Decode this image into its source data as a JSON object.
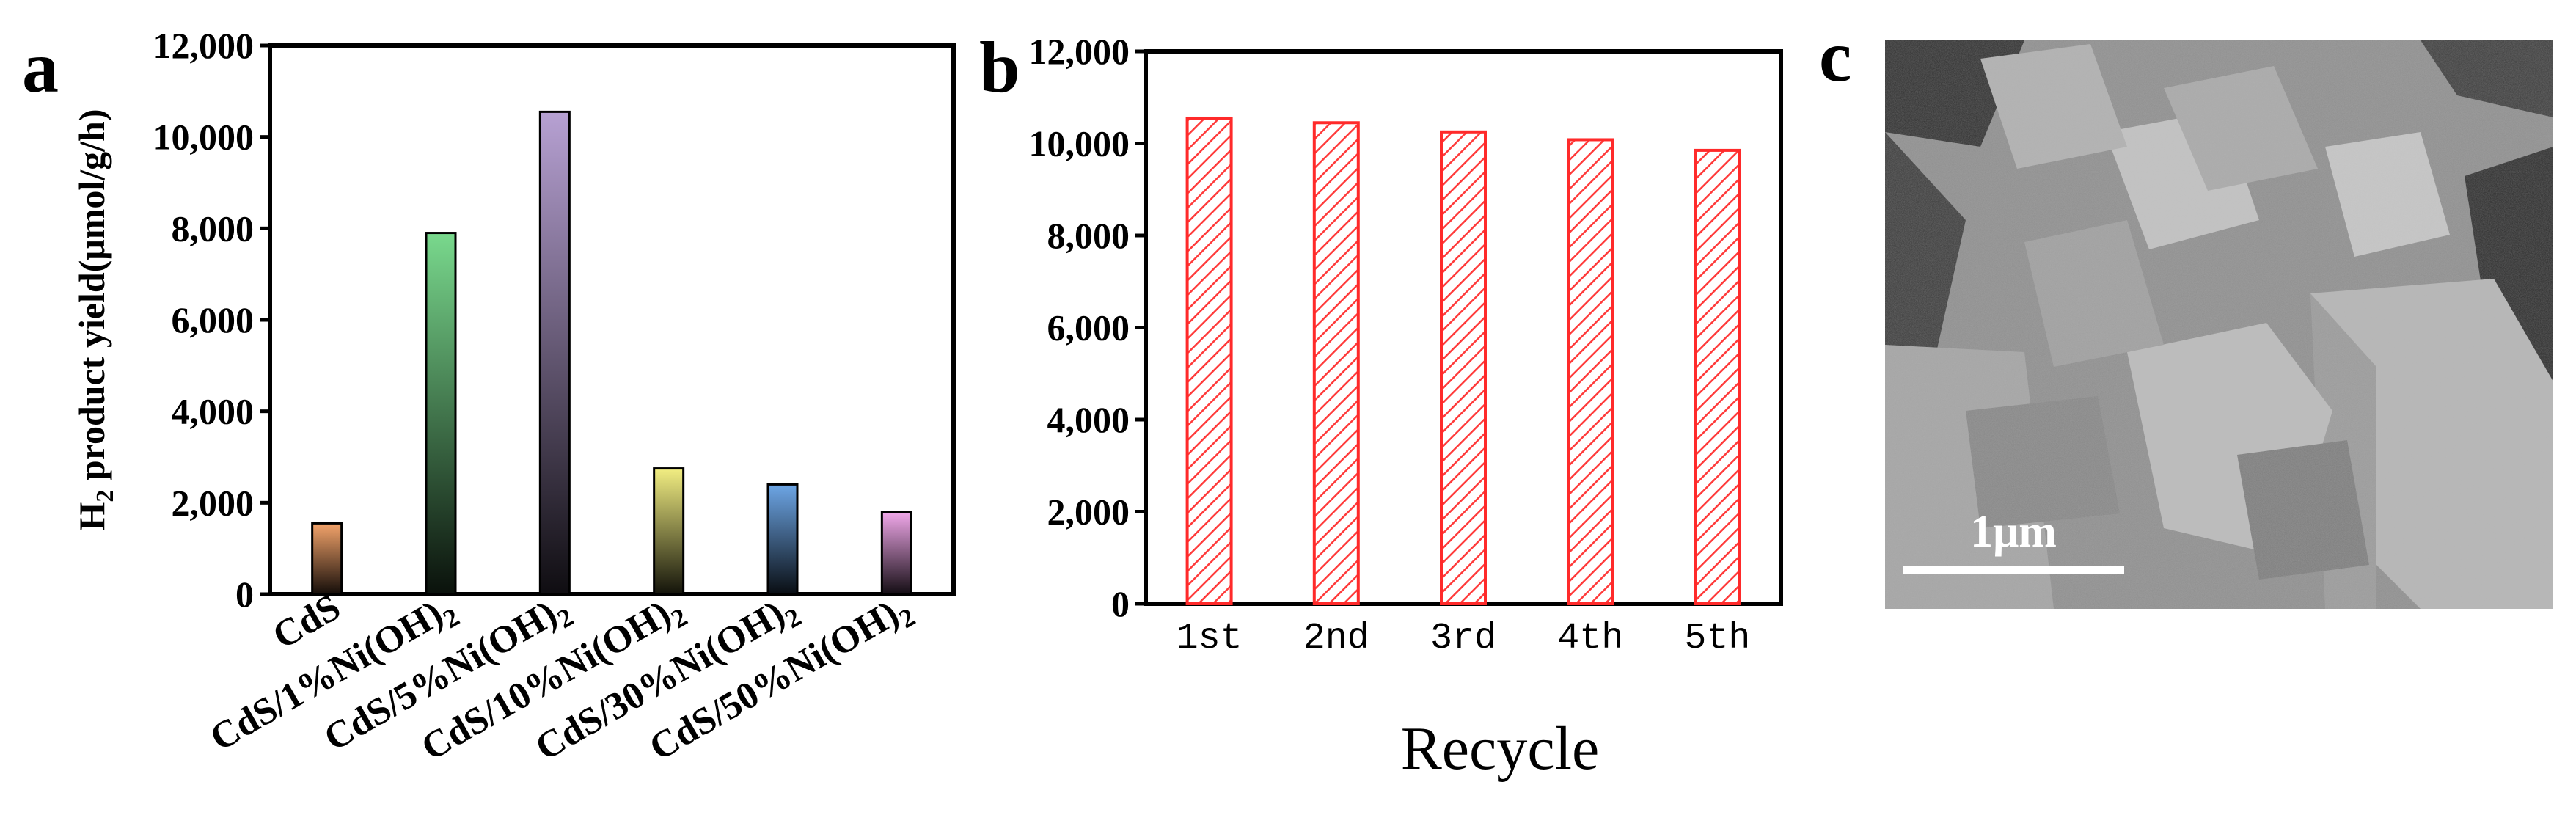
{
  "panels": {
    "a": {
      "letter": "a"
    },
    "b": {
      "letter": "b"
    },
    "c": {
      "letter": "c",
      "scale_bar_label": "1μm"
    }
  },
  "chart_data": [
    {
      "panel": "a",
      "type": "bar",
      "title": "",
      "xlabel": "",
      "ylabel": "H2 product yield(μmol/g/h)",
      "ylabel_main": "H",
      "ylabel_sub": "2",
      "ylabel_rest": " product yield(μmol/g/h)",
      "ylim": [
        0,
        12000
      ],
      "yticks": [
        0,
        2000,
        4000,
        6000,
        8000,
        10000,
        12000
      ],
      "ytick_labels": [
        "0",
        "2,000",
        "4,000",
        "6,000",
        "8,000",
        "10,000",
        "12,000"
      ],
      "grid": false,
      "legend": "none",
      "categories": [
        "CdS",
        "CdS/1%Ni(OH)2",
        "CdS/5%Ni(OH)2",
        "CdS/10%Ni(OH)2",
        "CdS/30%Ni(OH)2",
        "CdS/50%Ni(OH)2"
      ],
      "category_labels": [
        {
          "main": "CdS",
          "sub": ""
        },
        {
          "main": "CdS/1%Ni(OH)",
          "sub": "2"
        },
        {
          "main": "CdS/5%Ni(OH)",
          "sub": "2"
        },
        {
          "main": "CdS/10%Ni(OH)",
          "sub": "2"
        },
        {
          "main": "CdS/30%Ni(OH)",
          "sub": "2"
        },
        {
          "main": "CdS/50%Ni(OH)",
          "sub": "2"
        }
      ],
      "values": [
        1550,
        7900,
        10550,
        2750,
        2400,
        1800
      ],
      "colors": [
        "#f4a46b",
        "#79d98d",
        "#b7a1d3",
        "#f2ee82",
        "#6da6e6",
        "#f1a8ea"
      ]
    },
    {
      "panel": "b",
      "type": "bar",
      "title": "",
      "xlabel": "Recycle",
      "ylabel": "",
      "ylim": [
        0,
        12000
      ],
      "yticks": [
        0,
        2000,
        4000,
        6000,
        8000,
        10000,
        12000
      ],
      "ytick_labels": [
        "0",
        "2,000",
        "4,000",
        "6,000",
        "8,000",
        "10,000",
        "12,000"
      ],
      "grid": false,
      "legend": "none",
      "categories": [
        "1st",
        "2nd",
        "3rd",
        "4th",
        "5th"
      ],
      "values": [
        10550,
        10450,
        10250,
        10080,
        9850
      ],
      "color": "#ff2a2a",
      "pattern": "diagonal-hatch"
    }
  ]
}
